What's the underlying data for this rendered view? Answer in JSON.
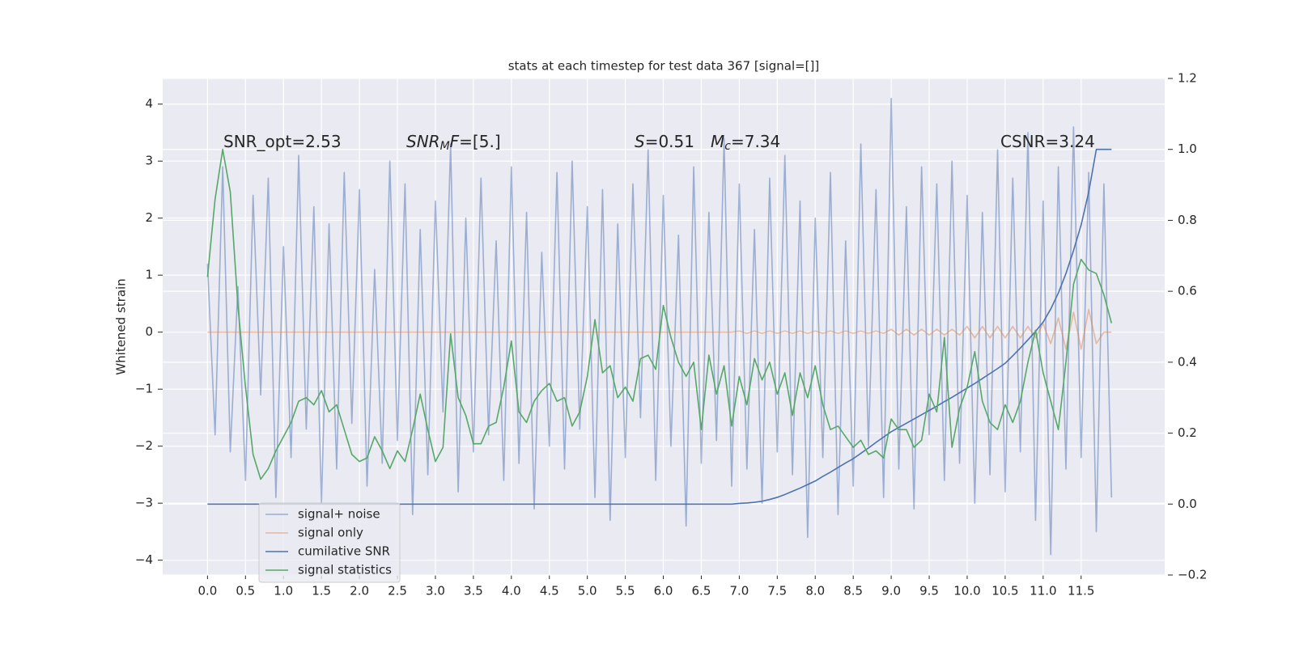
{
  "chart_data": {
    "type": "line",
    "title": "stats at each timestep for test data 367 [signal=[]]",
    "ylabel": "Whitened strain",
    "x": [
      0.0,
      0.1,
      0.2,
      0.3,
      0.4,
      0.5,
      0.6,
      0.7,
      0.8,
      0.9,
      1.0,
      1.1,
      1.2,
      1.3,
      1.4,
      1.5,
      1.6,
      1.7,
      1.8,
      1.9,
      2.0,
      2.1,
      2.2,
      2.3,
      2.4,
      2.5,
      2.6,
      2.7,
      2.8,
      2.9,
      3.0,
      3.1,
      3.2,
      3.3,
      3.4,
      3.5,
      3.6,
      3.7,
      3.8,
      3.9,
      4.0,
      4.1,
      4.2,
      4.3,
      4.4,
      4.5,
      4.6,
      4.7,
      4.8,
      4.9,
      5.0,
      5.1,
      5.2,
      5.3,
      5.4,
      5.5,
      5.6,
      5.7,
      5.8,
      5.9,
      6.0,
      6.1,
      6.2,
      6.3,
      6.4,
      6.5,
      6.6,
      6.7,
      6.8,
      6.9,
      7.0,
      7.1,
      7.2,
      7.3,
      7.4,
      7.5,
      7.6,
      7.7,
      7.8,
      7.9,
      8.0,
      8.1,
      8.2,
      8.3,
      8.4,
      8.5,
      8.6,
      8.7,
      8.8,
      8.9,
      9.0,
      9.1,
      9.2,
      9.3,
      9.4,
      9.5,
      9.6,
      9.7,
      9.8,
      9.9,
      10.0,
      10.1,
      10.2,
      10.3,
      10.4,
      10.5,
      10.6,
      10.7,
      10.8,
      10.9,
      11.0,
      11.1,
      11.2,
      11.3,
      11.4,
      11.5,
      11.6,
      11.7,
      11.8,
      11.9
    ],
    "series": [
      {
        "name": "signal+ noise",
        "color": "#4c72b0",
        "alpha": 0.5,
        "axis": "y",
        "values": [
          1.2,
          -1.8,
          2.9,
          -2.1,
          0.8,
          -2.6,
          2.4,
          -1.1,
          2.7,
          -2.9,
          1.5,
          -2.2,
          3.1,
          -1.7,
          2.2,
          -3.0,
          1.9,
          -2.4,
          2.8,
          -1.6,
          2.5,
          -2.7,
          1.1,
          -2.3,
          3.0,
          -1.9,
          2.6,
          -3.2,
          1.8,
          -2.5,
          2.3,
          -1.4,
          3.3,
          -2.8,
          2.0,
          -2.1,
          2.7,
          -1.8,
          1.6,
          -2.6,
          2.9,
          -2.3,
          2.1,
          -3.1,
          1.4,
          -2.0,
          2.8,
          -2.4,
          3.0,
          -1.7,
          2.2,
          -2.9,
          2.5,
          -3.3,
          1.9,
          -2.2,
          2.6,
          -1.5,
          3.2,
          -2.6,
          2.4,
          -2.0,
          1.7,
          -3.4,
          2.9,
          -2.3,
          2.1,
          -1.9,
          3.4,
          -2.7,
          2.6,
          -2.4,
          1.8,
          -3.0,
          2.7,
          -2.1,
          3.1,
          -2.5,
          2.3,
          -3.6,
          2.0,
          -2.2,
          2.8,
          -3.2,
          1.6,
          -2.7,
          3.3,
          -2.0,
          2.5,
          -2.9,
          4.1,
          -2.4,
          2.2,
          -3.1,
          2.9,
          -1.8,
          2.6,
          -2.6,
          3.0,
          -2.3,
          2.4,
          -3.0,
          2.1,
          -2.5,
          3.2,
          -2.8,
          2.7,
          -2.1,
          3.5,
          -3.3,
          2.3,
          -3.9,
          2.9,
          -2.4,
          3.6,
          -2.2,
          2.8,
          -3.5,
          2.6,
          -2.9
        ]
      },
      {
        "name": "signal only",
        "color": "#dd8452",
        "alpha": 0.5,
        "axis": "y",
        "values": [
          0,
          0,
          0,
          0,
          0,
          0,
          0,
          0,
          0,
          0,
          0,
          0,
          0,
          0,
          0,
          0,
          0,
          0,
          0,
          0,
          0,
          0,
          0,
          0,
          0,
          0,
          0,
          0,
          0,
          0,
          0,
          0,
          0,
          0,
          0,
          0,
          0,
          0,
          0,
          0,
          0,
          0,
          0,
          0,
          0,
          0,
          0,
          0,
          0,
          0,
          0,
          0,
          0,
          0,
          0,
          0,
          0,
          0,
          0,
          0,
          0,
          0,
          0,
          0,
          0,
          0,
          0,
          0,
          0,
          0,
          0.02,
          -0.02,
          0.02,
          -0.02,
          0.02,
          -0.02,
          0.02,
          -0.02,
          0.02,
          -0.02,
          0.02,
          -0.02,
          0.02,
          -0.02,
          0.02,
          -0.02,
          0.02,
          -0.02,
          0.02,
          -0.02,
          0.05,
          -0.05,
          0.05,
          -0.05,
          0.05,
          -0.05,
          0.05,
          -0.05,
          0.05,
          -0.05,
          0.1,
          -0.1,
          0.1,
          -0.1,
          0.1,
          -0.1,
          0.1,
          -0.1,
          0.1,
          -0.1,
          0.15,
          -0.2,
          0.25,
          -0.3,
          0.35,
          -0.3,
          0.4,
          -0.2,
          0,
          0
        ]
      },
      {
        "name": "cumilative SNR",
        "color": "#4c72b0",
        "alpha": 1,
        "axis": "y2",
        "values": [
          0,
          0,
          0,
          0,
          0,
          0,
          0,
          0,
          0,
          0,
          0,
          0,
          0,
          0,
          0,
          0,
          0,
          0,
          0,
          0,
          0,
          0,
          0,
          0,
          0,
          0,
          0,
          0,
          0,
          0,
          0,
          0,
          0,
          0,
          0,
          0,
          0,
          0,
          0,
          0,
          0,
          0,
          0,
          0,
          0,
          0,
          0,
          0,
          0,
          0,
          0,
          0,
          0,
          0,
          0,
          0,
          0,
          0,
          0,
          0,
          0,
          0,
          0,
          0,
          0,
          0,
          0,
          0,
          0,
          0,
          0.002,
          0.003,
          0.005,
          0.008,
          0.013,
          0.019,
          0.027,
          0.036,
          0.045,
          0.055,
          0.065,
          0.078,
          0.09,
          0.103,
          0.116,
          0.128,
          0.143,
          0.158,
          0.174,
          0.189,
          0.204,
          0.216,
          0.228,
          0.24,
          0.252,
          0.264,
          0.276,
          0.289,
          0.301,
          0.314,
          0.327,
          0.34,
          0.354,
          0.368,
          0.382,
          0.397,
          0.418,
          0.44,
          0.463,
          0.487,
          0.513,
          0.55,
          0.595,
          0.65,
          0.715,
          0.787,
          0.88,
          1.0,
          1.0,
          1.0
        ]
      },
      {
        "name": "signal statistics",
        "color": "#55a868",
        "alpha": 1,
        "axis": "y2",
        "values": [
          0.64,
          0.86,
          1.0,
          0.88,
          0.56,
          0.33,
          0.14,
          0.07,
          0.1,
          0.15,
          0.19,
          0.23,
          0.29,
          0.3,
          0.28,
          0.32,
          0.26,
          0.28,
          0.21,
          0.14,
          0.12,
          0.13,
          0.19,
          0.15,
          0.1,
          0.15,
          0.12,
          0.21,
          0.31,
          0.21,
          0.12,
          0.16,
          0.48,
          0.3,
          0.25,
          0.17,
          0.17,
          0.22,
          0.23,
          0.33,
          0.46,
          0.26,
          0.23,
          0.29,
          0.32,
          0.34,
          0.29,
          0.3,
          0.22,
          0.26,
          0.36,
          0.52,
          0.37,
          0.39,
          0.3,
          0.33,
          0.29,
          0.41,
          0.42,
          0.38,
          0.56,
          0.47,
          0.4,
          0.36,
          0.4,
          0.21,
          0.42,
          0.31,
          0.39,
          0.22,
          0.36,
          0.28,
          0.41,
          0.35,
          0.4,
          0.31,
          0.37,
          0.25,
          0.37,
          0.3,
          0.39,
          0.28,
          0.21,
          0.22,
          0.19,
          0.16,
          0.18,
          0.14,
          0.15,
          0.13,
          0.24,
          0.21,
          0.21,
          0.16,
          0.18,
          0.31,
          0.26,
          0.47,
          0.16,
          0.27,
          0.33,
          0.43,
          0.29,
          0.23,
          0.21,
          0.28,
          0.23,
          0.29,
          0.4,
          0.49,
          0.37,
          0.29,
          0.21,
          0.4,
          0.62,
          0.69,
          0.66,
          0.65,
          0.59,
          0.51
        ]
      }
    ],
    "annotations": [
      {
        "parts": [
          {
            "text": "SNR_opt=2.53"
          }
        ]
      },
      {
        "parts": [
          {
            "text": "SNR",
            "italic": true
          },
          {
            "text": "M",
            "italic": true,
            "sub": true
          },
          {
            "text": "F",
            "italic": true
          },
          {
            "text": "=[5.]"
          }
        ]
      },
      {
        "parts": [
          {
            "text": "S",
            "italic": true
          },
          {
            "text": "=0.51"
          }
        ]
      },
      {
        "parts": [
          {
            "text": "M",
            "italic": true
          },
          {
            "text": "c",
            "italic": true,
            "sub": true
          },
          {
            "text": "=7.34"
          }
        ]
      },
      {
        "parts": [
          {
            "text": "CSNR=3.24"
          }
        ]
      }
    ],
    "xlim": [
      -0.59,
      12.6
    ],
    "xticks": [
      {
        "value": 0,
        "label": "0.0"
      },
      0.5,
      {
        "value": 1,
        "label": "1.0"
      },
      1.5,
      {
        "value": 2,
        "label": "2.0"
      },
      2.5,
      {
        "value": 3,
        "label": "3.0"
      },
      3.5,
      {
        "value": 4,
        "label": "4.0"
      },
      4.5,
      {
        "value": 5,
        "label": "5.0"
      },
      5.5,
      {
        "value": 6,
        "label": "6.0"
      },
      6.5,
      {
        "value": 7,
        "label": "7.0"
      },
      7.5,
      {
        "value": 8,
        "label": "8.0"
      },
      8.5,
      {
        "value": 9,
        "label": "9.0"
      },
      9.5,
      {
        "value": 10,
        "label": "10.0"
      },
      10.5,
      {
        "value": 11,
        "label": "11.0"
      },
      11.5
    ],
    "ylim": [
      -4.26,
      4.45
    ],
    "yticks": [
      {
        "value": -4,
        "label": "−4"
      },
      {
        "value": -3,
        "label": "−3"
      },
      {
        "value": -2,
        "label": "−2"
      },
      {
        "value": -1,
        "label": "−1"
      },
      0,
      1,
      2,
      3,
      4
    ],
    "y2lim": [
      -0.2,
      1.2
    ],
    "y2ticks": [
      {
        "value": -0.2,
        "label": "−0.2"
      },
      {
        "value": 0,
        "label": "0.0"
      },
      0.2,
      0.4,
      0.6,
      0.8,
      {
        "value": 1,
        "label": "1.0"
      },
      1.2
    ],
    "grid": true,
    "legend": "lower left"
  }
}
